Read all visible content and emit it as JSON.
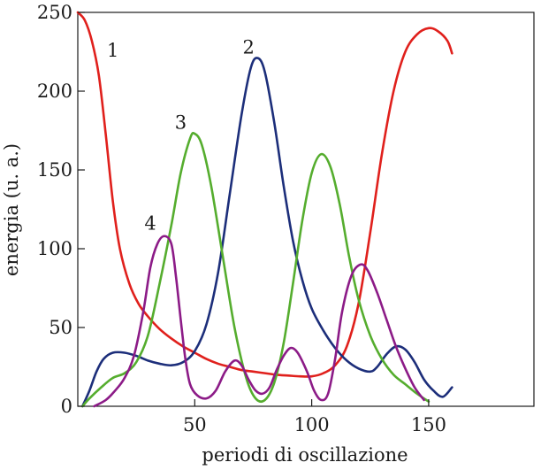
{
  "chart_data": {
    "type": "line",
    "title": "",
    "xlabel": "periodi di oscillazione",
    "ylabel": "energia (u. a.)",
    "xlim": [
      0,
      195
    ],
    "ylim": [
      0,
      250
    ],
    "xticks": [
      50,
      100,
      150
    ],
    "yticks": [
      0,
      50,
      100,
      150,
      200,
      250
    ],
    "grid": false,
    "legend": "none",
    "series": [
      {
        "name": "1",
        "color": "#e0201c",
        "label_at": [
          15,
          222
        ],
        "points": [
          [
            0,
            250
          ],
          [
            3,
            245
          ],
          [
            6,
            232
          ],
          [
            9,
            210
          ],
          [
            12,
            172
          ],
          [
            15,
            130
          ],
          [
            18,
            100
          ],
          [
            22,
            78
          ],
          [
            26,
            65
          ],
          [
            30,
            57
          ],
          [
            35,
            49
          ],
          [
            40,
            43
          ],
          [
            45,
            38
          ],
          [
            50,
            34
          ],
          [
            55,
            30
          ],
          [
            60,
            27
          ],
          [
            65,
            25
          ],
          [
            70,
            23
          ],
          [
            75,
            22
          ],
          [
            80,
            21
          ],
          [
            85,
            20
          ],
          [
            90,
            19.5
          ],
          [
            95,
            19
          ],
          [
            100,
            19
          ],
          [
            105,
            21
          ],
          [
            110,
            26
          ],
          [
            115,
            38
          ],
          [
            120,
            65
          ],
          [
            125,
            110
          ],
          [
            130,
            160
          ],
          [
            135,
            200
          ],
          [
            140,
            225
          ],
          [
            145,
            236
          ],
          [
            150,
            240
          ],
          [
            154,
            238
          ],
          [
            158,
            232
          ],
          [
            160,
            224
          ]
        ]
      },
      {
        "name": "2",
        "color": "#1c2e7a",
        "label_at": [
          73,
          224
        ],
        "points": [
          [
            2,
            0
          ],
          [
            5,
            10
          ],
          [
            8,
            22
          ],
          [
            11,
            30
          ],
          [
            15,
            34
          ],
          [
            20,
            34
          ],
          [
            25,
            32
          ],
          [
            30,
            29
          ],
          [
            35,
            27
          ],
          [
            40,
            26
          ],
          [
            45,
            28
          ],
          [
            50,
            35
          ],
          [
            55,
            52
          ],
          [
            60,
            85
          ],
          [
            65,
            135
          ],
          [
            70,
            185
          ],
          [
            74,
            215
          ],
          [
            77,
            221
          ],
          [
            80,
            212
          ],
          [
            84,
            180
          ],
          [
            88,
            140
          ],
          [
            92,
            105
          ],
          [
            96,
            80
          ],
          [
            100,
            62
          ],
          [
            105,
            48
          ],
          [
            110,
            37
          ],
          [
            115,
            29
          ],
          [
            120,
            24
          ],
          [
            125,
            22
          ],
          [
            128,
            25
          ],
          [
            132,
            33
          ],
          [
            136,
            38
          ],
          [
            140,
            36
          ],
          [
            144,
            28
          ],
          [
            148,
            17
          ],
          [
            152,
            10
          ],
          [
            156,
            6
          ],
          [
            160,
            12
          ]
        ]
      },
      {
        "name": "3",
        "color": "#55ad2e",
        "label_at": [
          44,
          176
        ],
        "points": [
          [
            2,
            0
          ],
          [
            5,
            5
          ],
          [
            10,
            12
          ],
          [
            15,
            18
          ],
          [
            20,
            21
          ],
          [
            25,
            28
          ],
          [
            30,
            45
          ],
          [
            35,
            78
          ],
          [
            40,
            115
          ],
          [
            44,
            148
          ],
          [
            48,
            170
          ],
          [
            50,
            173
          ],
          [
            53,
            166
          ],
          [
            57,
            140
          ],
          [
            62,
            95
          ],
          [
            67,
            50
          ],
          [
            72,
            18
          ],
          [
            76,
            5
          ],
          [
            80,
            4
          ],
          [
            84,
            15
          ],
          [
            88,
            40
          ],
          [
            92,
            78
          ],
          [
            96,
            118
          ],
          [
            100,
            148
          ],
          [
            104,
            160
          ],
          [
            108,
            152
          ],
          [
            112,
            128
          ],
          [
            116,
            95
          ],
          [
            120,
            68
          ],
          [
            125,
            45
          ],
          [
            130,
            30
          ],
          [
            135,
            20
          ],
          [
            140,
            14
          ],
          [
            145,
            8
          ],
          [
            150,
            3
          ]
        ]
      },
      {
        "name": "4",
        "color": "#8c1b87",
        "label_at": [
          31,
          112
        ],
        "points": [
          [
            7,
            0
          ],
          [
            12,
            4
          ],
          [
            16,
            10
          ],
          [
            20,
            18
          ],
          [
            24,
            32
          ],
          [
            28,
            60
          ],
          [
            31,
            88
          ],
          [
            34,
            103
          ],
          [
            37,
            108
          ],
          [
            40,
            103
          ],
          [
            42,
            82
          ],
          [
            44,
            55
          ],
          [
            46,
            30
          ],
          [
            48,
            14
          ],
          [
            51,
            7
          ],
          [
            55,
            5
          ],
          [
            59,
            10
          ],
          [
            63,
            22
          ],
          [
            67,
            29
          ],
          [
            70,
            26
          ],
          [
            73,
            17
          ],
          [
            76,
            10
          ],
          [
            79,
            8
          ],
          [
            82,
            12
          ],
          [
            85,
            23
          ],
          [
            88,
            32
          ],
          [
            91,
            37
          ],
          [
            94,
            34
          ],
          [
            98,
            22
          ],
          [
            101,
            10
          ],
          [
            104,
            4
          ],
          [
            107,
            8
          ],
          [
            110,
            30
          ],
          [
            113,
            60
          ],
          [
            117,
            83
          ],
          [
            121,
            90
          ],
          [
            124,
            86
          ],
          [
            128,
            72
          ],
          [
            132,
            55
          ],
          [
            136,
            38
          ],
          [
            140,
            24
          ],
          [
            144,
            12
          ],
          [
            148,
            4
          ]
        ]
      }
    ]
  }
}
